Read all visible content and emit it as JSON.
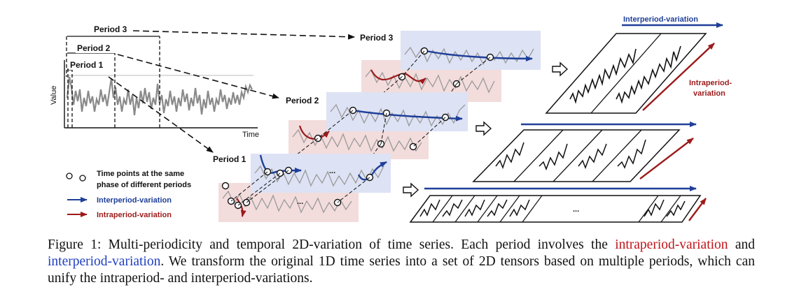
{
  "figure": {
    "period_labels": {
      "top_period3": "Period 3",
      "top_period2": "Period 2",
      "top_period1": "Period 1",
      "stack_period3": "Period 3",
      "stack_period2": "Period 2",
      "stack_period1": "Period 1"
    },
    "axis": {
      "ylabel": "Value",
      "xlabel": "Time"
    },
    "legend": {
      "points": "Time points at the same",
      "points_line2": "phase of different periods",
      "inter": "Interperiod-variation",
      "intra": "Intraperiod-variation"
    },
    "right": {
      "inter_title": "Interperiod-variation",
      "intra_title": "Intraperiod-",
      "intra_title2": "variation",
      "ellipsis": "..."
    },
    "stack_ellipsis": "...",
    "colors": {
      "inter": "#1f3f99",
      "intra": "#9c1b1b",
      "blue_panel": "#dde2f4",
      "red_panel": "#f3dcdc"
    }
  },
  "caption": {
    "prefix": "Figure 1: Multi-periodicity and temporal 2D-variation of time series. Each period involves the ",
    "intra": "intraperiod-variation",
    "mid": " and ",
    "inter": "interperiod-variation",
    "suffix": ". We transform the original 1D time series into a set of 2D tensors based on multiple periods, which can unify the intraperiod- and interperiod-variations."
  }
}
